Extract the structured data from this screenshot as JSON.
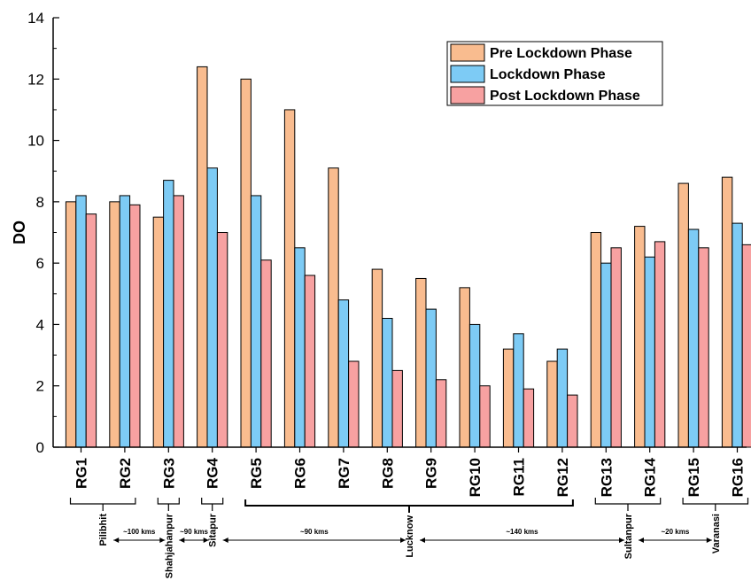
{
  "chart_data": {
    "type": "bar",
    "ylabel": "DO",
    "xlabel": "",
    "ylim": [
      0,
      14
    ],
    "yticks": [
      0,
      2,
      4,
      6,
      8,
      10,
      12,
      14
    ],
    "grid": false,
    "legend_position": "top-right",
    "categories": [
      "RG1",
      "RG2",
      "RG3",
      "RG4",
      "RG5",
      "RG6",
      "RG7",
      "RG8",
      "RG9",
      "RG10",
      "RG11",
      "RG12",
      "RG13",
      "RG14",
      "RG15",
      "RG16"
    ],
    "series": [
      {
        "name": "Pre Lockdown Phase",
        "color": "#F9BC8F",
        "values": [
          8.0,
          8.0,
          7.5,
          12.4,
          12.0,
          11.0,
          9.1,
          5.8,
          5.5,
          5.2,
          3.2,
          2.8,
          7.0,
          7.2,
          8.6,
          8.8
        ]
      },
      {
        "name": "Lockdown Phase",
        "color": "#7DCBF5",
        "values": [
          8.2,
          8.2,
          8.7,
          9.1,
          8.2,
          6.5,
          4.8,
          4.2,
          4.5,
          4.0,
          3.7,
          3.2,
          6.0,
          6.2,
          7.1,
          7.3
        ]
      },
      {
        "name": "Post Lockdown Phase",
        "color": "#F7A1A1",
        "values": [
          7.6,
          7.9,
          8.2,
          7.0,
          6.1,
          5.6,
          2.8,
          2.5,
          2.2,
          2.0,
          1.9,
          1.7,
          6.5,
          6.7,
          6.5,
          6.6
        ]
      }
    ],
    "annotations": {
      "cities": [
        {
          "name": "Pilibhit",
          "first": 0,
          "last": 1
        },
        {
          "name": "Shahjahanpur",
          "first": 2,
          "last": 2
        },
        {
          "name": "Sitapur",
          "first": 3,
          "last": 3
        },
        {
          "name": "Lucknow",
          "first": 4,
          "last": 11
        },
        {
          "name": "Sultanpur",
          "first": 12,
          "last": 13
        },
        {
          "name": "Varanasi",
          "first": 14,
          "last": 15
        }
      ],
      "distances": [
        "~100 kms",
        "~90 kms",
        "~90 kms",
        "~140 kms",
        "~20 kms"
      ]
    }
  }
}
